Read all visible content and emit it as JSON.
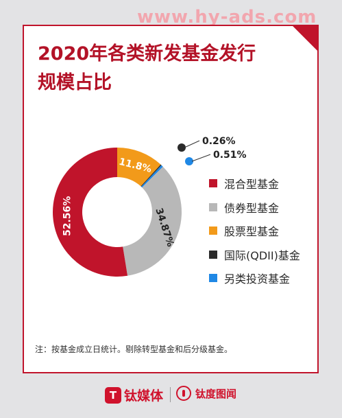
{
  "watermark": "www.hy-ads.com",
  "title_line1": "2020年各类新发基金发行",
  "title_line2": "规模占比",
  "chart_data": {
    "type": "pie",
    "title": "2020年各类新发基金发行规模占比",
    "series": [
      {
        "name": "混合型基金",
        "value": 52.56,
        "label": "52.56%",
        "color": "#c0142b"
      },
      {
        "name": "债券型基金",
        "value": 34.87,
        "label": "34.87%",
        "color": "#b8b8b8"
      },
      {
        "name": "股票型基金",
        "value": 11.8,
        "label": "11.8%",
        "color": "#f29a1a"
      },
      {
        "name": "国际(QDII)基金",
        "value": 0.26,
        "label": "0.26%",
        "color": "#2b2b2b"
      },
      {
        "name": "另类投资基金",
        "value": 0.51,
        "label": "0.51%",
        "color": "#1f88e5"
      }
    ],
    "legend_position": "right"
  },
  "legend": [
    "混合型基金",
    "债券型基金",
    "股票型基金",
    "国际(QDII)基金",
    "另类投资基金"
  ],
  "note": "注：按基金成立日统计。剔除转型基金和后分级基金。",
  "footer": {
    "brand1_logo": "T",
    "brand1": "钛媒体",
    "brand2": "钛度图闻"
  }
}
